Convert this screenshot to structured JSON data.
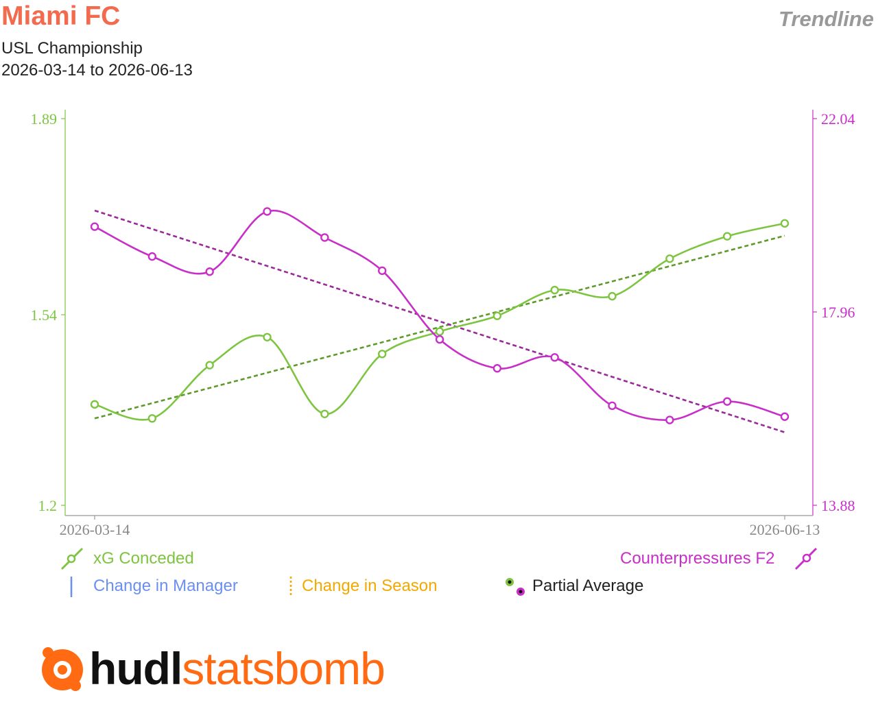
{
  "header": {
    "team": "Miami FC",
    "competition": "USL Championship",
    "date_range": "2026-03-14 to 2026-06-13",
    "view_label": "Trendline"
  },
  "colors": {
    "team": "#f26b4e",
    "xg": "#7dc540",
    "xg_trend": "#5e9a2a",
    "cp": "#c72fc8",
    "cp_trend": "#9a2a9a",
    "manager": "#6b8ff0",
    "season": "#f2a900",
    "axis": "#999999"
  },
  "legend": {
    "xg": "xG Conceded",
    "cp": "Counterpressures F2",
    "manager": "Change in Manager",
    "season": "Change in Season",
    "partial": "Partial Average"
  },
  "logo": {
    "part1": "hudl",
    "part2": "statsbomb"
  },
  "chart_data": {
    "type": "line",
    "x": [
      "2026-03-14",
      "",
      "",
      "",
      "",
      "",
      "",
      "",
      "",
      "",
      "",
      "",
      "2026-06-13"
    ],
    "x_tick_labels": [
      "2026-03-14",
      "2026-06-13"
    ],
    "y_left": {
      "ticks": [
        "1.89",
        "1.54",
        "1.2"
      ],
      "range": [
        1.2,
        1.89
      ]
    },
    "y_right": {
      "ticks": [
        "22.04",
        "17.96",
        "13.88"
      ],
      "range": [
        13.88,
        22.04
      ]
    },
    "series": [
      {
        "name": "xG Conceded",
        "axis": "left",
        "values": [
          1.38,
          1.355,
          1.45,
          1.5,
          1.363,
          1.47,
          1.51,
          1.538,
          1.584,
          1.573,
          1.64,
          1.68,
          1.703
        ],
        "trend": [
          1.355,
          1.681
        ]
      },
      {
        "name": "Counterpressures F2",
        "axis": "right",
        "values": [
          19.76,
          19.13,
          18.81,
          20.08,
          19.53,
          18.83,
          17.38,
          16.77,
          17.0,
          15.98,
          15.68,
          16.07,
          15.75
        ],
        "trend": [
          20.1,
          15.42
        ]
      }
    ]
  }
}
